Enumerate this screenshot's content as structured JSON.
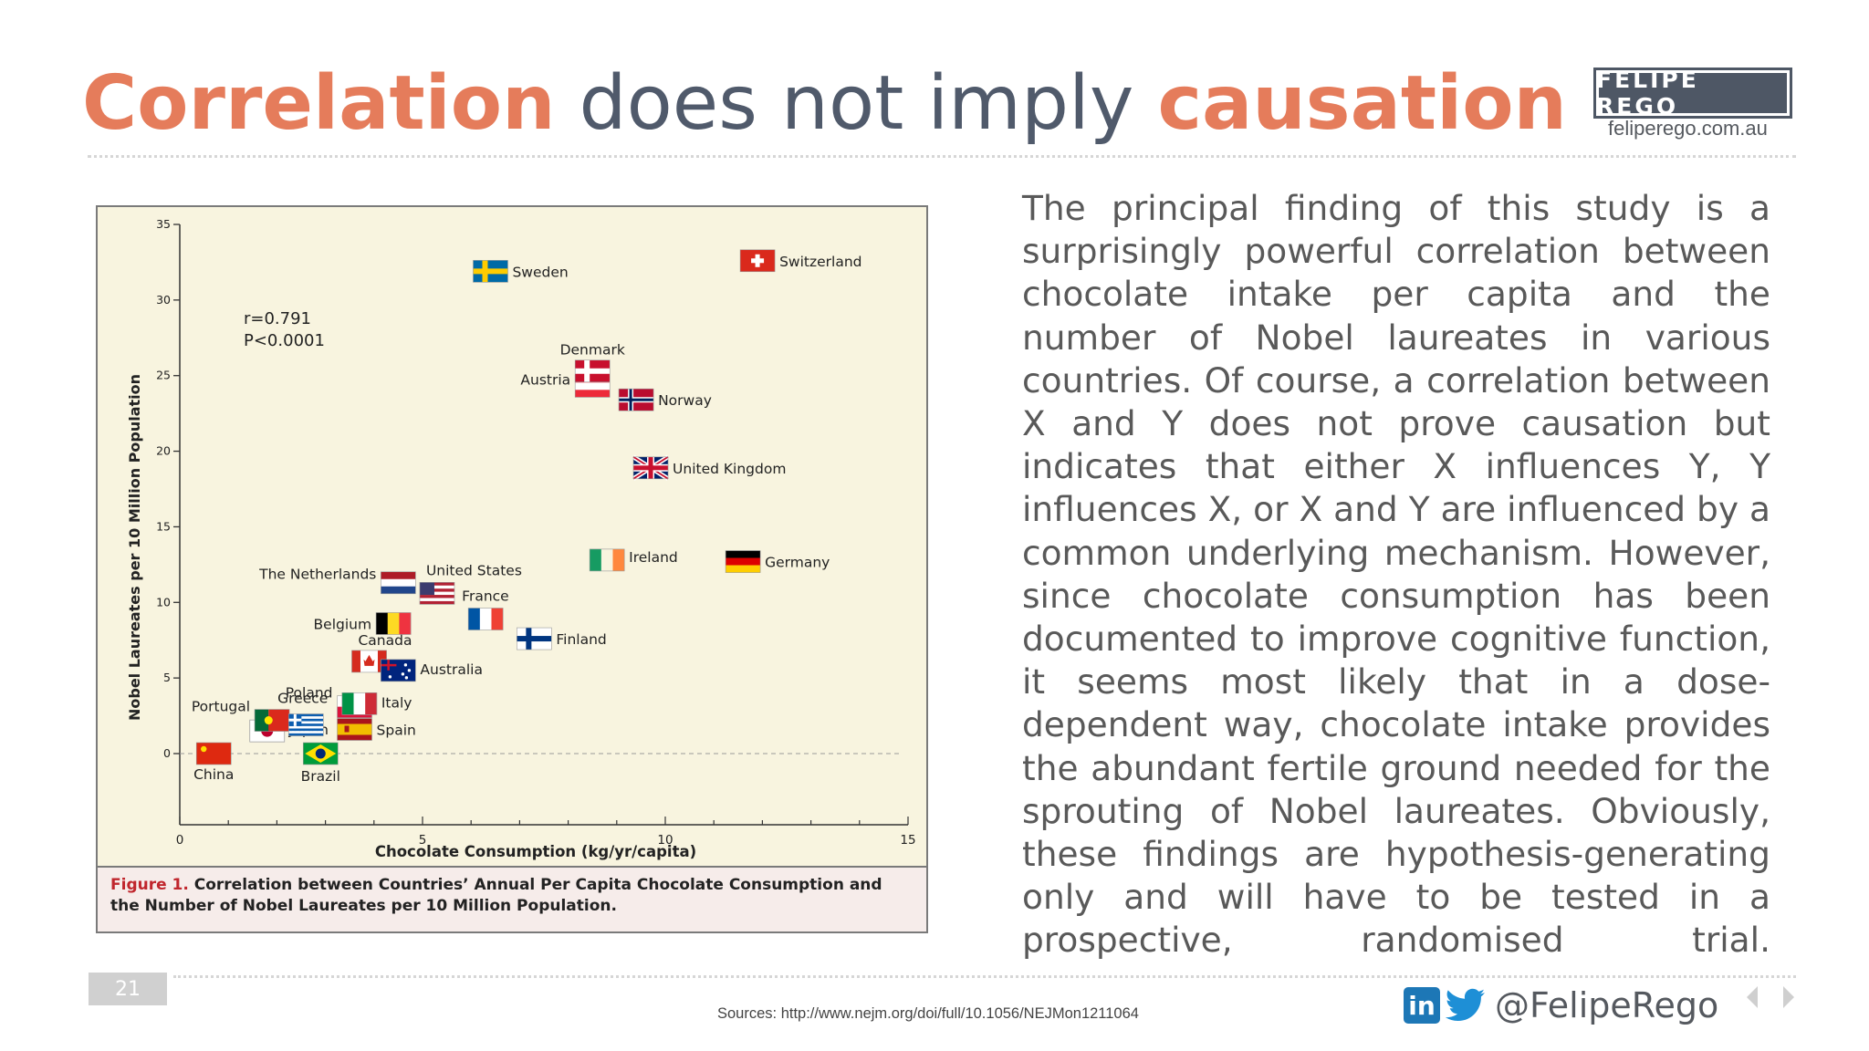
{
  "title": {
    "part1": "Correlation",
    "part2": " does not imply ",
    "part3": "causation"
  },
  "brand": {
    "name": "FELIPE REGO",
    "url": "feliperego.com.au"
  },
  "paragraph": "The principal finding of this study is a surprisingly powerful correlation between chocolate intake per capita and the number of Nobel laureates in various countries. Of course, a correlation between X and Y does not prove causation but indicates that either X influences Y, Y influences X, or X and Y are influenced by a common underlying mechanism. However, since chocolate consumption has been documented to improve cognitive function, it seems most likely that in a dose-dependent way, chocolate intake provides the abundant fertile ground needed for the sprouting of Nobel laureates. Obviously, these findings are hypothesis-generating only and will have to be tested in a prospective, randomised trial.",
  "caption": {
    "label": "Figure 1.",
    "text": " Correlation between Countries’ Annual Per Capita Chocolate Consumption and the Number of Nobel Laureates per 10 Million Population."
  },
  "footer": {
    "page_number": "21",
    "sources": "Sources: http://www.nejm.org/doi/full/10.1056/NEJMon1211064",
    "handle": "@FelipeRego",
    "linkedin_icon": "linkedin-icon",
    "twitter_icon": "twitter-icon"
  },
  "chart_data": {
    "type": "scatter",
    "xlabel": "Chocolate Consumption (kg/yr/capita)",
    "ylabel": "Nobel Laureates per 10 Million Population",
    "xlim": [
      0,
      15
    ],
    "ylim": [
      0,
      35
    ],
    "xticks": [
      "0",
      "5",
      "10",
      "15"
    ],
    "yticks": [
      "0",
      "5",
      "10",
      "15",
      "20",
      "25",
      "30",
      "35"
    ],
    "annotation": {
      "r": "r=0.791",
      "p": "P<0.0001"
    },
    "points": [
      {
        "name": "China",
        "x": 0.7,
        "y": 0.0
      },
      {
        "name": "Japan",
        "x": 1.8,
        "y": 1.5
      },
      {
        "name": "Brazil",
        "x": 2.9,
        "y": 0.0
      },
      {
        "name": "Portugal",
        "x": 1.9,
        "y": 2.2
      },
      {
        "name": "Greece",
        "x": 2.6,
        "y": 1.9
      },
      {
        "name": "Poland",
        "x": 3.6,
        "y": 3.1
      },
      {
        "name": "Italy",
        "x": 3.7,
        "y": 3.3
      },
      {
        "name": "Spain",
        "x": 3.6,
        "y": 1.6
      },
      {
        "name": "Canada",
        "x": 3.9,
        "y": 6.1
      },
      {
        "name": "Australia",
        "x": 4.5,
        "y": 5.5
      },
      {
        "name": "Belgium",
        "x": 4.4,
        "y": 8.6
      },
      {
        "name": "The Netherlands",
        "x": 4.5,
        "y": 11.3
      },
      {
        "name": "United States",
        "x": 5.3,
        "y": 10.6
      },
      {
        "name": "France",
        "x": 6.3,
        "y": 8.9
      },
      {
        "name": "Finland",
        "x": 7.3,
        "y": 7.6
      },
      {
        "name": "Ireland",
        "x": 8.8,
        "y": 12.8
      },
      {
        "name": "Germany",
        "x": 11.6,
        "y": 12.7
      },
      {
        "name": "Austria",
        "x": 8.5,
        "y": 24.3
      },
      {
        "name": "Denmark",
        "x": 8.5,
        "y": 25.3
      },
      {
        "name": "Norway",
        "x": 9.4,
        "y": 23.4
      },
      {
        "name": "United Kingdom",
        "x": 9.7,
        "y": 18.9
      },
      {
        "name": "Sweden",
        "x": 6.4,
        "y": 31.9
      },
      {
        "name": "Switzerland",
        "x": 11.9,
        "y": 32.6
      }
    ]
  }
}
